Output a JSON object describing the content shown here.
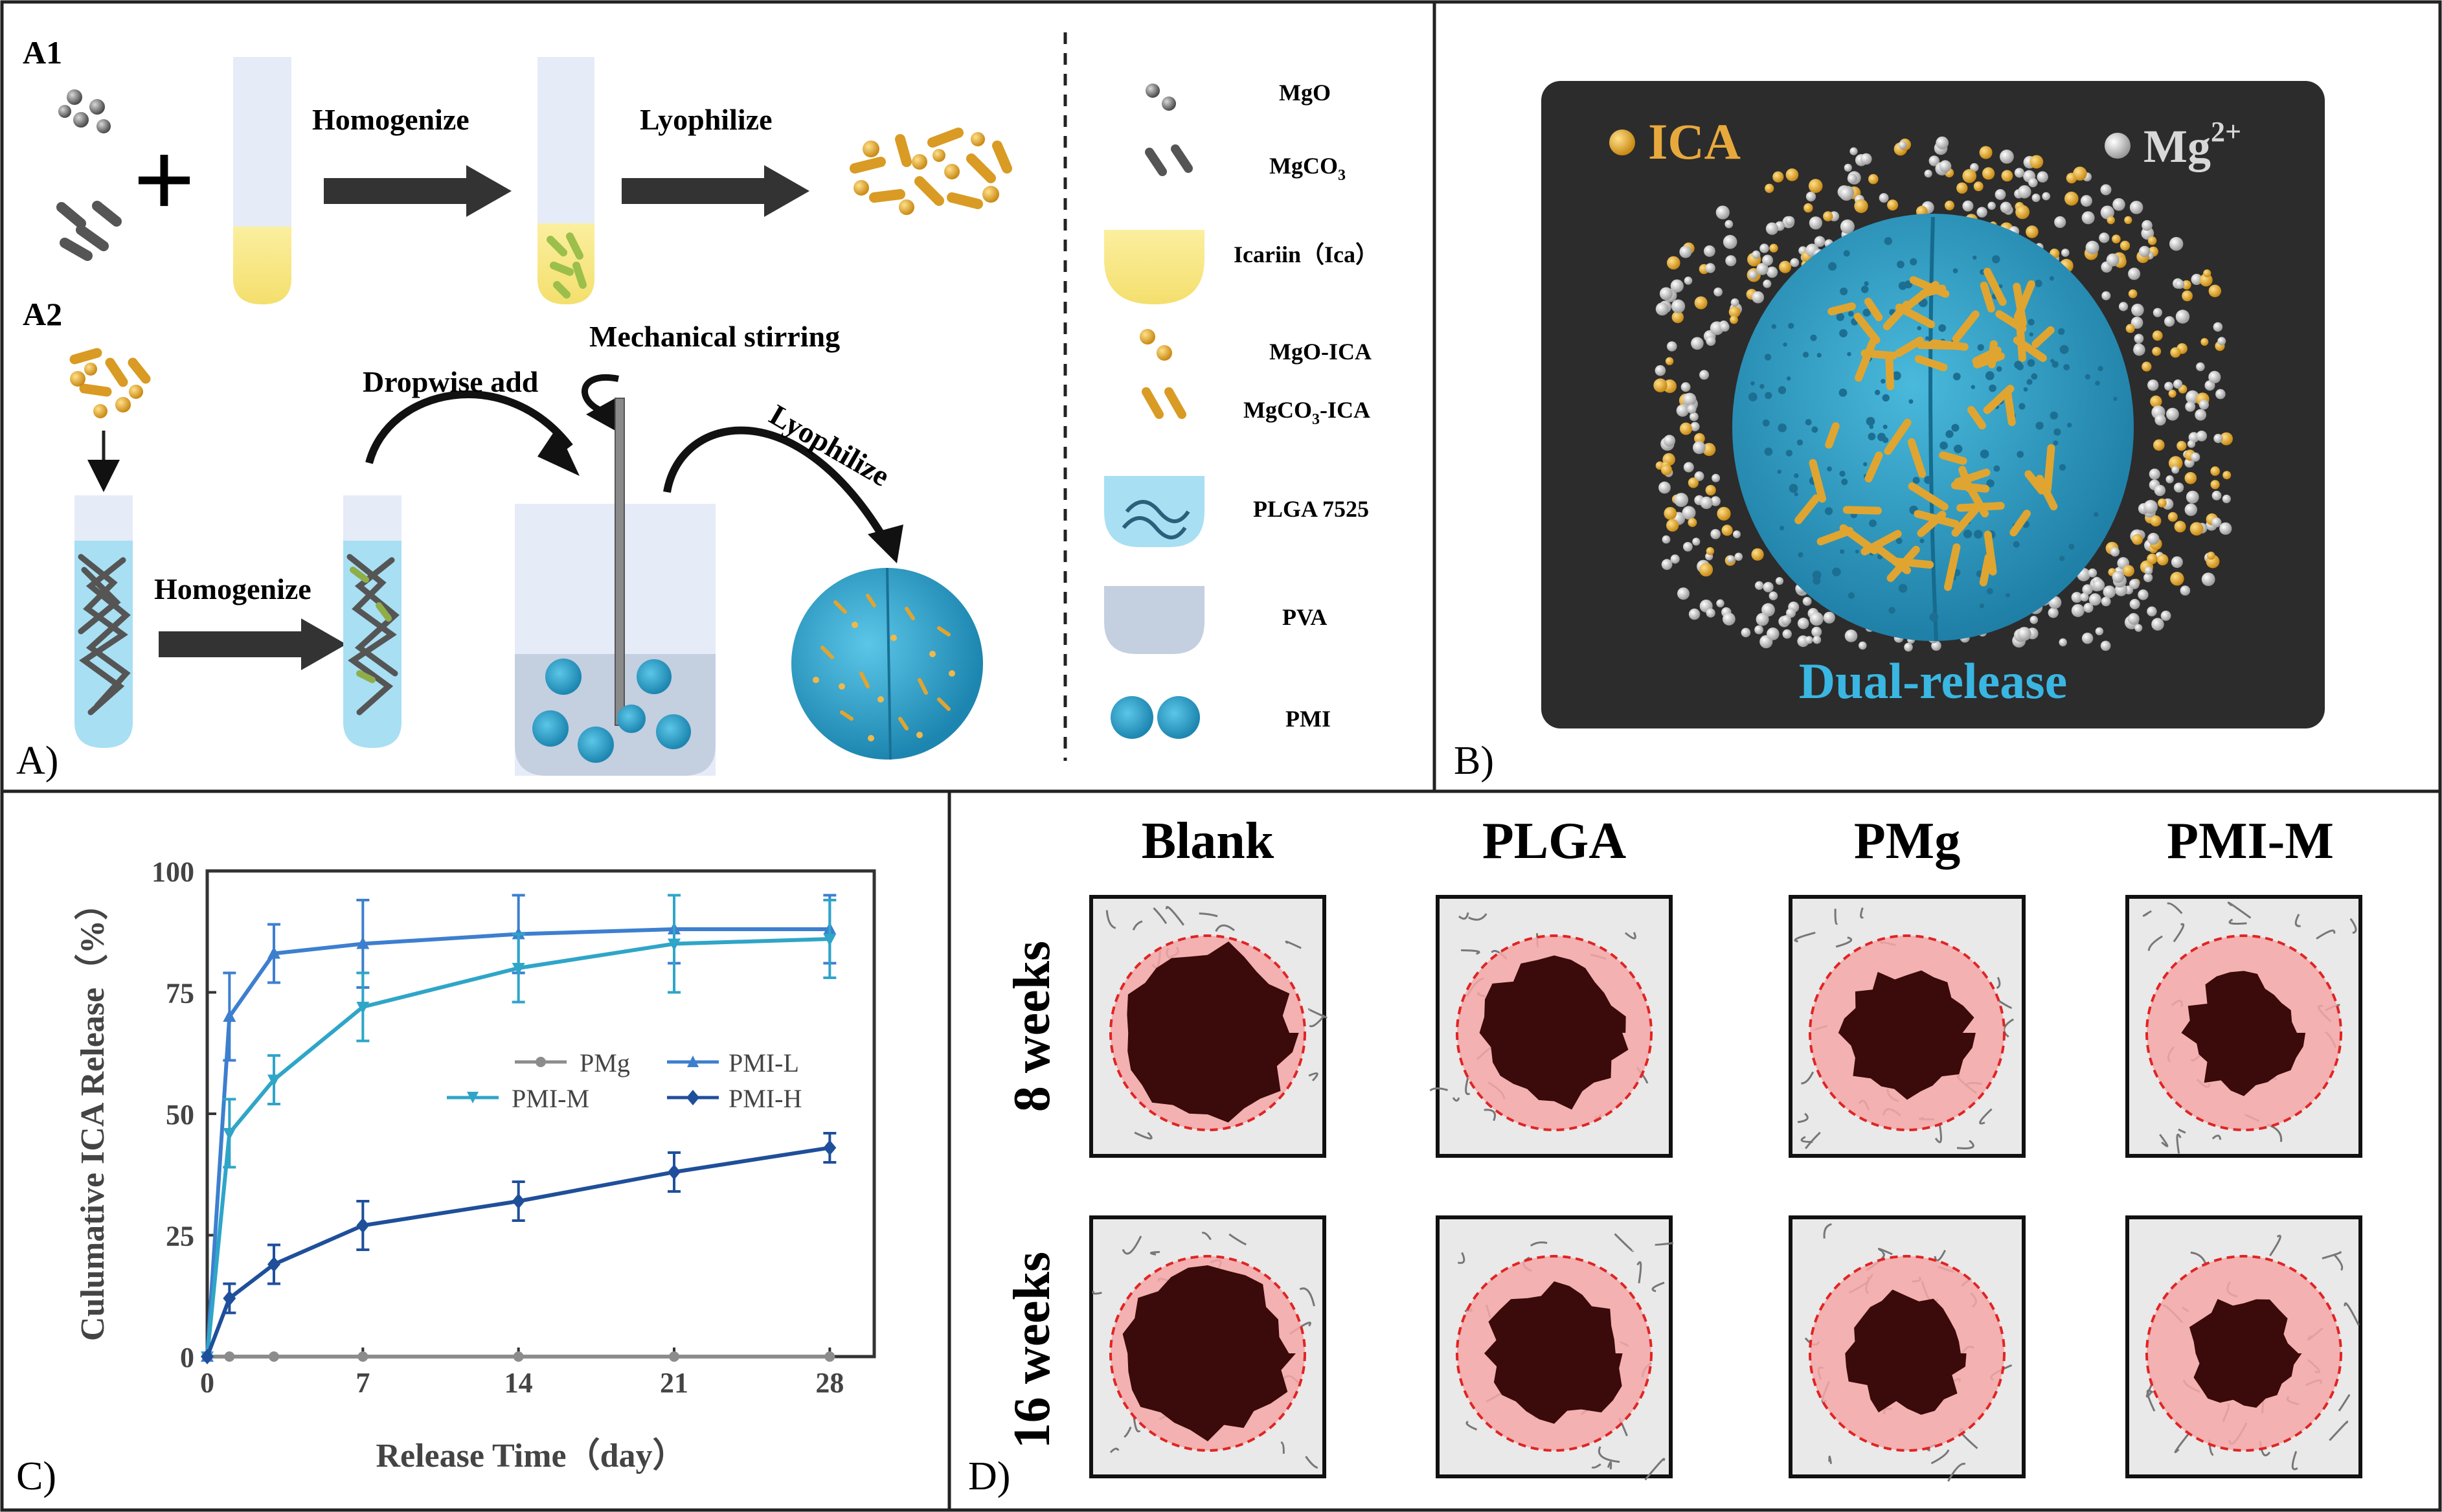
{
  "panel_letters": {
    "a": "A)",
    "b": "B)",
    "c": "C)",
    "d": "D)"
  },
  "panel_a": {
    "a1_label": "A1",
    "a2_label": "A2",
    "plus_sign": "+",
    "a1_step1": "Homogenize",
    "a1_step2": "Lyophilize",
    "a2_step_homogenize": "Homogenize",
    "a2_step_dropwise": "Dropwise add",
    "a2_step_stirring": "Mechanical stirring",
    "a2_step_lyophilize": "Lyophilize"
  },
  "legend": {
    "mgo": "MgO",
    "mgco3": "MgCO",
    "mgco3_sub": "3",
    "icariin": "Icariin（Ica）",
    "mgo_ica": "MgO-ICA",
    "mgco3_ica": "MgCO",
    "mgco3_ica_sub": "3",
    "mgco3_ica_suffix": "-ICA",
    "plga": "PLGA 7525",
    "pva": "PVA",
    "pmi": "PMI"
  },
  "panel_b": {
    "ica_label": "ICA",
    "mg_label": "Mg",
    "mg_sup": "2+",
    "caption": "Dual-release"
  },
  "colors": {
    "ica_gold": "#e0a530",
    "plga_blue": "#3aa6cc",
    "dark_bg": "#2b2b2b",
    "pmg_gray": "#8c8c8c",
    "pmi_l": "#3d7fcf",
    "pmi_m": "#2fa5c8",
    "pmi_h": "#1f4f9a",
    "defect_dark": "#3b0a0a",
    "defect_pink": "#f4a7a7"
  },
  "chart_data": {
    "type": "line",
    "ylabel": "Culumative ICA Release（%）",
    "xlabel": "Release Time（day）",
    "x": [
      0,
      1,
      3,
      7,
      14,
      21,
      28
    ],
    "xticks": [
      "0",
      "7",
      "14",
      "21",
      "28"
    ],
    "yticks": [
      "0",
      "25",
      "50",
      "75",
      "100"
    ],
    "xlim": [
      0,
      30
    ],
    "ylim": [
      0,
      100
    ],
    "series": [
      {
        "name": "PMg",
        "values": [
          0,
          0,
          0,
          0,
          0,
          0,
          0
        ],
        "err": [
          0,
          0,
          0,
          0,
          0,
          0,
          0
        ]
      },
      {
        "name": "PMI-L",
        "values": [
          0,
          70,
          83,
          85,
          87,
          88,
          88
        ],
        "err": [
          0,
          9,
          6,
          9,
          8,
          7,
          7
        ]
      },
      {
        "name": "PMI-M",
        "values": [
          0,
          46,
          57,
          72,
          80,
          85,
          86
        ],
        "err": [
          0,
          7,
          5,
          7,
          7,
          10,
          8
        ]
      },
      {
        "name": "PMI-H",
        "values": [
          0,
          12,
          19,
          27,
          32,
          38,
          43
        ],
        "err": [
          0,
          3,
          4,
          5,
          4,
          4,
          3
        ]
      }
    ]
  },
  "panel_d": {
    "columns": [
      "Blank",
      "PLGA",
      "PMg",
      "PMI-M"
    ],
    "rows": [
      "8 weeks",
      "16 weeks"
    ]
  }
}
